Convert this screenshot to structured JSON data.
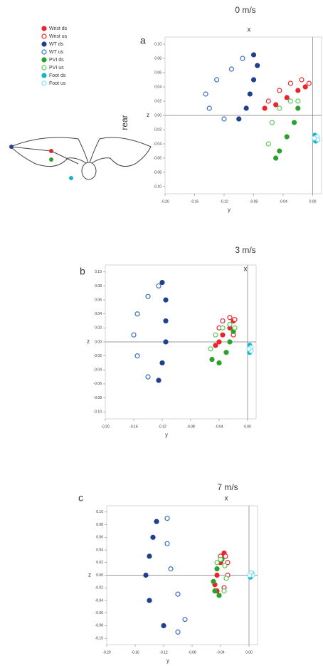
{
  "chart_data": [
    {
      "type": "scatter",
      "panel_label": "a",
      "title": "0 m/s",
      "top_label": "x",
      "xlabel": "y",
      "ylabel": "z",
      "annotation": "rear",
      "xlim": [
        -0.2,
        0.012
      ],
      "ylim": [
        -0.11,
        0.11
      ],
      "xticks": [
        {
          "value": -0.2,
          "label": "-0.20"
        },
        {
          "value": -0.16,
          "label": "-0.16"
        },
        {
          "value": -0.12,
          "label": "-0.12"
        },
        {
          "value": -0.08,
          "label": "-0.08"
        },
        {
          "value": -0.04,
          "label": "-0.04"
        },
        {
          "value": 0,
          "label": "0.00"
        }
      ],
      "yticks": [
        {
          "value": 0.1,
          "label": "0.10"
        },
        {
          "value": 0.08,
          "label": "0.08"
        },
        {
          "value": 0.06,
          "label": "0.06"
        },
        {
          "value": 0.04,
          "label": "0.04"
        },
        {
          "value": 0.02,
          "label": "0.02"
        },
        {
          "value": 0,
          "label": "0.00"
        },
        {
          "value": -0.02,
          "label": "-0.02"
        },
        {
          "value": -0.04,
          "label": "-0.04"
        },
        {
          "value": -0.06,
          "label": "-0.06"
        },
        {
          "value": -0.08,
          "label": "-0.08"
        },
        {
          "value": -0.1,
          "label": "-0.10"
        }
      ],
      "series": [
        {
          "name": "Wrist ds",
          "color": "#e8262a",
          "marker": "filled",
          "x": [
            -0.01,
            -0.02,
            -0.035,
            -0.05,
            -0.065
          ],
          "y": [
            0.04,
            0.035,
            0.025,
            0.015,
            0.01
          ]
        },
        {
          "name": "Wrist us",
          "color": "#e8262a",
          "marker": "open",
          "x": [
            -0.06,
            -0.045,
            -0.03,
            -0.015,
            -0.005
          ],
          "y": [
            0.02,
            0.035,
            0.045,
            0.05,
            0.045
          ]
        },
        {
          "name": "WT ds",
          "color": "#1f3f8f",
          "marker": "filled",
          "x": [
            -0.08,
            -0.075,
            -0.08,
            -0.085,
            -0.09,
            -0.1
          ],
          "y": [
            0.085,
            0.07,
            0.05,
            0.03,
            0.01,
            -0.005
          ]
        },
        {
          "name": "WT us",
          "color": "#3a6fc0",
          "marker": "open",
          "x": [
            -0.12,
            -0.14,
            -0.145,
            -0.13,
            -0.11,
            -0.095
          ],
          "y": [
            -0.005,
            0.01,
            0.03,
            0.05,
            0.065,
            0.08
          ]
        },
        {
          "name": "PVI ds",
          "color": "#2ca02c",
          "marker": "filled",
          "x": [
            -0.02,
            -0.025,
            -0.035,
            -0.045,
            -0.05
          ],
          "y": [
            0.01,
            -0.01,
            -0.03,
            -0.05,
            -0.06
          ]
        },
        {
          "name": "PVI us",
          "color": "#5cc85c",
          "marker": "open",
          "x": [
            -0.06,
            -0.055,
            -0.045,
            -0.03,
            -0.02
          ],
          "y": [
            -0.04,
            -0.01,
            0.01,
            0.02,
            0.02
          ]
        },
        {
          "name": "Foot ds",
          "color": "#17b5c9",
          "marker": "filled",
          "x": [
            0.003,
            0.005,
            0.004
          ],
          "y": [
            -0.028,
            -0.032,
            -0.036
          ]
        },
        {
          "name": "Foot us",
          "color": "#7fe0f0",
          "marker": "open",
          "x": [
            0.006,
            0.007,
            0.002
          ],
          "y": [
            -0.03,
            -0.034,
            -0.032
          ]
        }
      ]
    },
    {
      "type": "scatter",
      "panel_label": "b",
      "title": "3 m/s",
      "top_label": "x",
      "xlabel": "y",
      "ylabel": "z",
      "xlim": [
        -0.2,
        0.012
      ],
      "ylim": [
        -0.11,
        0.11
      ],
      "xticks": [
        {
          "value": -0.2,
          "label": "-0.20"
        },
        {
          "value": -0.16,
          "label": "-0.16"
        },
        {
          "value": -0.12,
          "label": "-0.12"
        },
        {
          "value": -0.08,
          "label": "-0.08"
        },
        {
          "value": -0.04,
          "label": "-0.04"
        },
        {
          "value": 0,
          "label": "0.00"
        }
      ],
      "yticks": [
        {
          "value": 0.1,
          "label": "0.10"
        },
        {
          "value": 0.08,
          "label": "0.08"
        },
        {
          "value": 0.06,
          "label": "0.06"
        },
        {
          "value": 0.04,
          "label": "0.04"
        },
        {
          "value": 0.02,
          "label": "0.02"
        },
        {
          "value": 0,
          "label": "0.00"
        },
        {
          "value": -0.02,
          "label": "-0.02"
        },
        {
          "value": -0.04,
          "label": "-0.04"
        },
        {
          "value": -0.06,
          "label": "-0.06"
        },
        {
          "value": -0.08,
          "label": "-0.08"
        },
        {
          "value": -0.1,
          "label": "-0.10"
        }
      ],
      "series": [
        {
          "color": "#e8262a",
          "marker": "filled",
          "x": [
            -0.02,
            -0.025,
            -0.035,
            -0.04,
            -0.045
          ],
          "y": [
            0.03,
            0.02,
            0.01,
            0.0,
            -0.005
          ]
        },
        {
          "color": "#e8262a",
          "marker": "open",
          "x": [
            -0.04,
            -0.035,
            -0.025,
            -0.018,
            -0.02
          ],
          "y": [
            0.02,
            0.03,
            0.035,
            0.032,
            0.01
          ]
        },
        {
          "color": "#1f3f8f",
          "marker": "filled",
          "x": [
            -0.12,
            -0.115,
            -0.115,
            -0.115,
            -0.12,
            -0.125
          ],
          "y": [
            0.085,
            0.06,
            0.03,
            0.0,
            -0.03,
            -0.055
          ]
        },
        {
          "color": "#3a6fc0",
          "marker": "open",
          "x": [
            -0.14,
            -0.155,
            -0.16,
            -0.155,
            -0.14,
            -0.125
          ],
          "y": [
            -0.05,
            -0.02,
            0.01,
            0.04,
            0.065,
            0.08
          ]
        },
        {
          "color": "#2ca02c",
          "marker": "filled",
          "x": [
            -0.02,
            -0.025,
            -0.03,
            -0.04,
            -0.05
          ],
          "y": [
            0.015,
            0.0,
            -0.015,
            -0.03,
            -0.025
          ]
        },
        {
          "color": "#5cc85c",
          "marker": "open",
          "x": [
            -0.052,
            -0.045,
            -0.035,
            -0.025,
            -0.018
          ],
          "y": [
            -0.01,
            0.01,
            0.02,
            0.025,
            0.02
          ]
        },
        {
          "color": "#17b5c9",
          "marker": "filled",
          "x": [
            0.003,
            0.004,
            0.003
          ],
          "y": [
            -0.005,
            -0.01,
            -0.015
          ]
        },
        {
          "color": "#7fe0f0",
          "marker": "open",
          "x": [
            0.005,
            0.005,
            0.002
          ],
          "y": [
            -0.008,
            -0.013,
            -0.01
          ]
        }
      ]
    },
    {
      "type": "scatter",
      "panel_label": "c",
      "title": "7 m/s",
      "top_label": "x",
      "xlabel": "y",
      "ylabel": "z",
      "xlim": [
        -0.2,
        0.012
      ],
      "ylim": [
        -0.11,
        0.11
      ],
      "xticks": [
        {
          "value": -0.2,
          "label": "-0.20"
        },
        {
          "value": -0.16,
          "label": "-0.16"
        },
        {
          "value": -0.12,
          "label": "-0.12"
        },
        {
          "value": -0.08,
          "label": "-0.08"
        },
        {
          "value": -0.04,
          "label": "-0.04"
        },
        {
          "value": 0,
          "label": "0.00"
        }
      ],
      "yticks": [
        {
          "value": 0.1,
          "label": "0.10"
        },
        {
          "value": 0.08,
          "label": "0.08"
        },
        {
          "value": 0.06,
          "label": "0.06"
        },
        {
          "value": 0.04,
          "label": "0.04"
        },
        {
          "value": 0.02,
          "label": "0.02"
        },
        {
          "value": 0,
          "label": "0.00"
        },
        {
          "value": -0.02,
          "label": "-0.02"
        },
        {
          "value": -0.04,
          "label": "-0.04"
        },
        {
          "value": -0.06,
          "label": "-0.06"
        },
        {
          "value": -0.08,
          "label": "-0.08"
        },
        {
          "value": -0.1,
          "label": "-0.10"
        }
      ],
      "series": [
        {
          "color": "#e8262a",
          "marker": "filled",
          "x": [
            -0.035,
            -0.04,
            -0.045,
            -0.048,
            -0.045
          ],
          "y": [
            0.035,
            0.02,
            0.0,
            -0.015,
            -0.025
          ]
        },
        {
          "color": "#e8262a",
          "marker": "open",
          "x": [
            -0.035,
            -0.03,
            -0.03,
            -0.033,
            -0.04
          ],
          "y": [
            -0.02,
            0.0,
            0.02,
            0.03,
            0.03
          ]
        },
        {
          "color": "#1f3f8f",
          "marker": "filled",
          "x": [
            -0.13,
            -0.135,
            -0.14,
            -0.145,
            -0.14,
            -0.12
          ],
          "y": [
            0.085,
            0.06,
            0.03,
            0.0,
            -0.04,
            -0.08
          ]
        },
        {
          "color": "#3a6fc0",
          "marker": "open",
          "x": [
            -0.1,
            -0.09,
            -0.1,
            -0.11,
            -0.115,
            -0.115
          ],
          "y": [
            -0.09,
            -0.07,
            -0.03,
            0.01,
            0.05,
            0.09
          ]
        },
        {
          "color": "#2ca02c",
          "marker": "filled",
          "x": [
            -0.038,
            -0.045,
            -0.05,
            -0.048,
            -0.042
          ],
          "y": [
            0.025,
            0.01,
            -0.01,
            -0.025,
            -0.032
          ]
        },
        {
          "color": "#5cc85c",
          "marker": "open",
          "x": [
            -0.035,
            -0.032,
            -0.034,
            -0.04,
            -0.045
          ],
          "y": [
            -0.025,
            -0.005,
            0.015,
            0.025,
            0.02
          ]
        },
        {
          "color": "#17b5c9",
          "marker": "filled",
          "x": [
            0.003,
            0.004,
            0.002
          ],
          "y": [
            0.0,
            0.003,
            -0.003
          ]
        },
        {
          "color": "#7fe0f0",
          "marker": "open",
          "x": [
            0.005,
            0.003,
            0.001
          ],
          "y": [
            0.0,
            0.004,
            0.0
          ]
        }
      ]
    }
  ]
}
